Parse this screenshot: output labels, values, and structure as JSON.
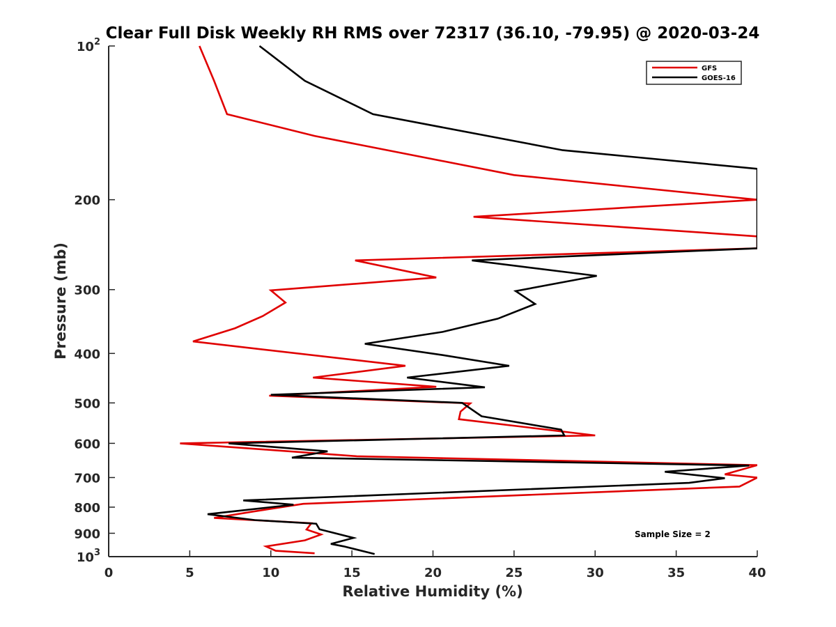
{
  "chart_data": {
    "type": "line",
    "title": "Clear Full Disk Weekly RH RMS over 72317 (36.10, -79.95) @ 2020-03-24",
    "xlabel": "Relative Humidity (%)",
    "ylabel": "Pressure (mb)",
    "xlim": [
      0,
      40
    ],
    "ylim": [
      100,
      1000
    ],
    "y_scale": "log",
    "y_reversed": true,
    "grid": false,
    "legend_position": "top-right",
    "x_ticks": [
      0,
      5,
      10,
      15,
      20,
      25,
      30,
      35,
      40
    ],
    "x_tick_labels": [
      "0",
      "5",
      "10",
      "15",
      "20",
      "25",
      "30",
      "35",
      "40"
    ],
    "y_ticks": [
      {
        "value": 100,
        "base": "10",
        "exp": "2"
      },
      {
        "value": 200,
        "label": "200"
      },
      {
        "value": 300,
        "label": "300"
      },
      {
        "value": 400,
        "label": "400"
      },
      {
        "value": 500,
        "label": "500"
      },
      {
        "value": 600,
        "label": "600"
      },
      {
        "value": 700,
        "label": "700"
      },
      {
        "value": 800,
        "label": "800"
      },
      {
        "value": 900,
        "label": "900"
      },
      {
        "value": 1000,
        "base": "10",
        "exp": "3"
      }
    ],
    "annotation": "Sample Size = 2",
    "series": [
      {
        "name": "GFS",
        "color": "#e00000",
        "points": [
          {
            "x": 5.6,
            "p": 100
          },
          {
            "x": 6.5,
            "p": 117
          },
          {
            "x": 7.3,
            "p": 136
          },
          {
            "x": 12.7,
            "p": 150
          },
          {
            "x": 25,
            "p": 179
          },
          {
            "x": 40,
            "p": 200
          },
          {
            "x": 22.5,
            "p": 216
          },
          {
            "x": 40,
            "p": 236
          },
          {
            "x": 40,
            "p": 249
          },
          {
            "x": 15.2,
            "p": 263
          },
          {
            "x": 20.2,
            "p": 284
          },
          {
            "x": 10,
            "p": 301
          },
          {
            "x": 10.9,
            "p": 318
          },
          {
            "x": 9.5,
            "p": 338
          },
          {
            "x": 7.8,
            "p": 357
          },
          {
            "x": 5.2,
            "p": 379
          },
          {
            "x": 18.3,
            "p": 423
          },
          {
            "x": 12.6,
            "p": 446
          },
          {
            "x": 20.2,
            "p": 465
          },
          {
            "x": 9.9,
            "p": 484
          },
          {
            "x": 22.3,
            "p": 501
          },
          {
            "x": 21.7,
            "p": 520
          },
          {
            "x": 21.6,
            "p": 538
          },
          {
            "x": 30,
            "p": 579
          },
          {
            "x": 4.4,
            "p": 600
          },
          {
            "x": 15.3,
            "p": 636
          },
          {
            "x": 40,
            "p": 662
          },
          {
            "x": 38,
            "p": 690
          },
          {
            "x": 40,
            "p": 700
          },
          {
            "x": 38.9,
            "p": 729
          },
          {
            "x": 12,
            "p": 788
          },
          {
            "x": 8.8,
            "p": 817
          },
          {
            "x": 6.5,
            "p": 840
          },
          {
            "x": 12.5,
            "p": 860
          },
          {
            "x": 12.2,
            "p": 885
          },
          {
            "x": 13.1,
            "p": 905
          },
          {
            "x": 12.1,
            "p": 929
          },
          {
            "x": 9.7,
            "p": 955
          },
          {
            "x": 10.3,
            "p": 974
          },
          {
            "x": 12.7,
            "p": 985
          }
        ]
      },
      {
        "name": "GOES-16",
        "color": "#000000",
        "points": [
          {
            "x": 9.3,
            "p": 100
          },
          {
            "x": 12.1,
            "p": 117
          },
          {
            "x": 16.3,
            "p": 136
          },
          {
            "x": 28,
            "p": 160
          },
          {
            "x": 40,
            "p": 174
          },
          {
            "x": 40,
            "p": 200
          },
          {
            "x": 40,
            "p": 249
          },
          {
            "x": 22.4,
            "p": 263
          },
          {
            "x": 30.1,
            "p": 282
          },
          {
            "x": 25.1,
            "p": 302
          },
          {
            "x": 26.3,
            "p": 320
          },
          {
            "x": 24,
            "p": 342
          },
          {
            "x": 20.6,
            "p": 363
          },
          {
            "x": 15.8,
            "p": 383
          },
          {
            "x": 20.6,
            "p": 403
          },
          {
            "x": 24.7,
            "p": 423
          },
          {
            "x": 18.4,
            "p": 446
          },
          {
            "x": 23.2,
            "p": 466
          },
          {
            "x": 10,
            "p": 482
          },
          {
            "x": 21.8,
            "p": 500
          },
          {
            "x": 23,
            "p": 531
          },
          {
            "x": 27.9,
            "p": 564
          },
          {
            "x": 28.1,
            "p": 579
          },
          {
            "x": 7.4,
            "p": 600
          },
          {
            "x": 13.5,
            "p": 622
          },
          {
            "x": 11.3,
            "p": 640
          },
          {
            "x": 39.5,
            "p": 663
          },
          {
            "x": 34.3,
            "p": 682
          },
          {
            "x": 38,
            "p": 702
          },
          {
            "x": 35.8,
            "p": 717
          },
          {
            "x": 8.3,
            "p": 776
          },
          {
            "x": 11.4,
            "p": 791
          },
          {
            "x": 6.1,
            "p": 826
          },
          {
            "x": 9,
            "p": 848
          },
          {
            "x": 12.8,
            "p": 862
          },
          {
            "x": 13,
            "p": 884
          },
          {
            "x": 15.1,
            "p": 919
          },
          {
            "x": 13.7,
            "p": 944
          },
          {
            "x": 14.5,
            "p": 955
          },
          {
            "x": 16.4,
            "p": 988
          }
        ]
      }
    ]
  }
}
